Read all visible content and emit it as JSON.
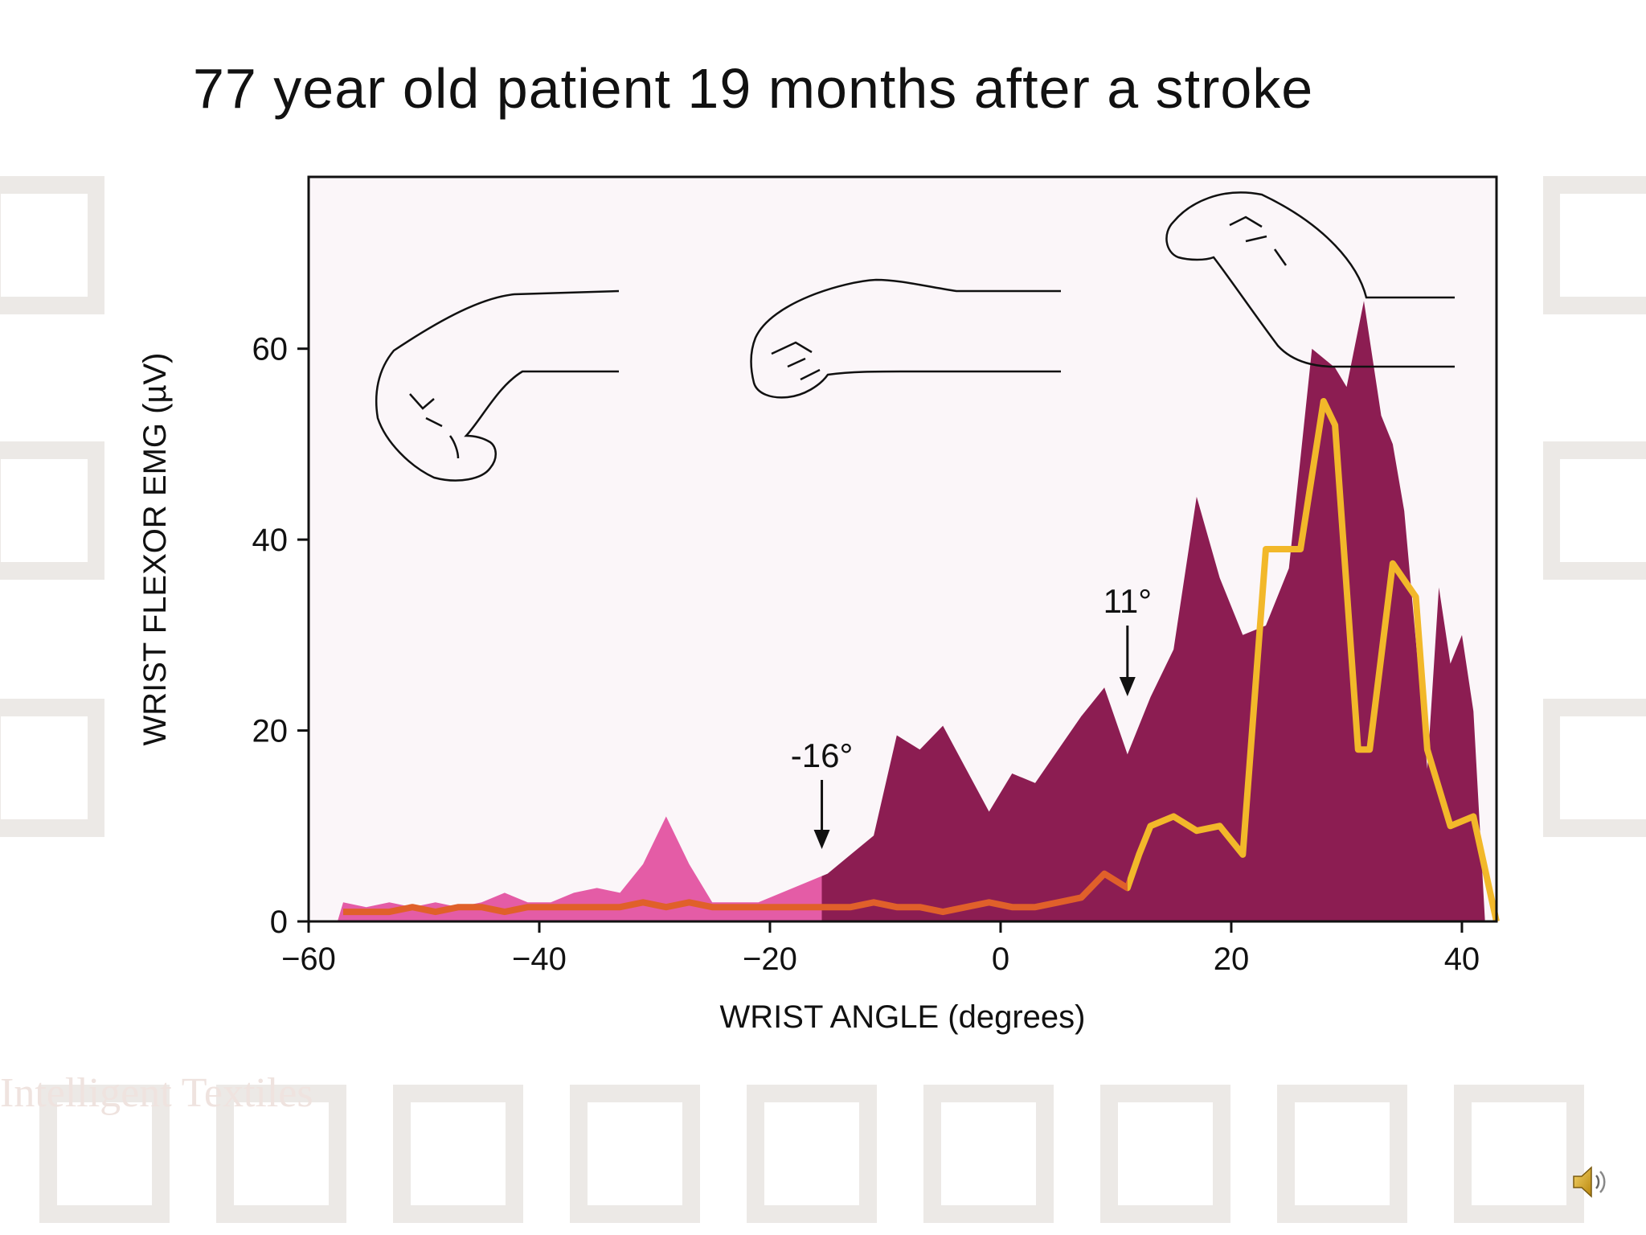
{
  "slide": {
    "title": "77 year old patient 19 months after a stroke",
    "watermark": "Intelligent Textiles",
    "speaker_icon": "speaker-icon"
  },
  "colors": {
    "plot_bg": "#fbf6f9",
    "emg_high": "#8c1d52",
    "emg_low": "#e45ca6",
    "line_low": "#e0602a",
    "line_high": "#f2b82a",
    "axis": "#111111"
  },
  "chart_data": {
    "type": "area",
    "title": "",
    "xlabel": "WRIST ANGLE (degrees)",
    "ylabel": "WRIST FLEXOR EMG (µV)",
    "xlim": [
      -60,
      43
    ],
    "ylim": [
      0,
      78
    ],
    "xticks": [
      -60,
      -40,
      -20,
      0,
      20,
      40
    ],
    "xtick_labels": [
      "−60",
      "−40",
      "−20",
      "0",
      "20",
      "40"
    ],
    "yticks": [
      0,
      20,
      40,
      60
    ],
    "ytick_labels": [
      "0",
      "20",
      "40",
      "60"
    ],
    "series": [
      {
        "kind": "area",
        "x": [
          -57.5,
          -57,
          -55,
          -53,
          -51,
          -49,
          -47,
          -45,
          -43,
          -41,
          -39,
          -37,
          -35,
          -33,
          -31,
          -29,
          -27,
          -25,
          -23,
          -21,
          -19,
          -17,
          -15,
          -13,
          -11,
          -9,
          -7,
          -5,
          -3,
          -1,
          1,
          3,
          5,
          7,
          9,
          11,
          13,
          15,
          17,
          19,
          21,
          23,
          25,
          27,
          29,
          30,
          31.5,
          33,
          34,
          35,
          37,
          38,
          39,
          40,
          41,
          42,
          43
        ],
        "y": [
          0,
          2,
          1.5,
          2,
          1.5,
          2,
          1.5,
          2,
          3,
          2,
          2,
          3,
          3.5,
          3,
          6,
          11,
          6,
          2,
          2,
          2,
          3,
          4,
          5,
          7,
          9,
          19.5,
          18,
          20.5,
          16,
          11.5,
          15.5,
          14.5,
          18,
          21.5,
          24.5,
          17.5,
          23.5,
          28.5,
          44.5,
          36,
          30,
          31,
          37,
          60,
          58,
          56,
          65,
          53,
          50,
          43,
          16,
          35,
          27,
          30,
          22,
          0,
          0
        ]
      },
      {
        "kind": "line",
        "x": [
          -57,
          -55,
          -53,
          -51,
          -49,
          -47,
          -45,
          -43,
          -41,
          -39,
          -37,
          -35,
          -33,
          -31,
          -29,
          -27,
          -25,
          -23,
          -21,
          -19,
          -17,
          -15,
          -13,
          -11,
          -9,
          -7,
          -5,
          -3,
          -1,
          1,
          3,
          5,
          7,
          9,
          11,
          12,
          13,
          15,
          17,
          19,
          21,
          23,
          24,
          26,
          28,
          29,
          31,
          32,
          34,
          36,
          37,
          39,
          41,
          43
        ],
        "y": [
          1,
          1,
          1,
          1.5,
          1,
          1.5,
          1.5,
          1,
          1.5,
          1.5,
          1.5,
          1.5,
          1.5,
          2,
          1.5,
          2,
          1.5,
          1.5,
          1.5,
          1.5,
          1.5,
          1.5,
          1.5,
          2,
          1.5,
          1.5,
          1,
          1.5,
          2,
          1.5,
          1.5,
          2,
          2.5,
          5,
          3.5,
          7,
          10,
          11,
          9.5,
          10,
          7,
          39,
          39,
          39,
          54.5,
          52,
          18,
          18,
          37.5,
          34,
          18,
          10,
          11,
          0
        ]
      }
    ],
    "annotations": [
      {
        "text": "-16°",
        "x": -15.5
      },
      {
        "text": "11°",
        "x": 11
      }
    ]
  }
}
